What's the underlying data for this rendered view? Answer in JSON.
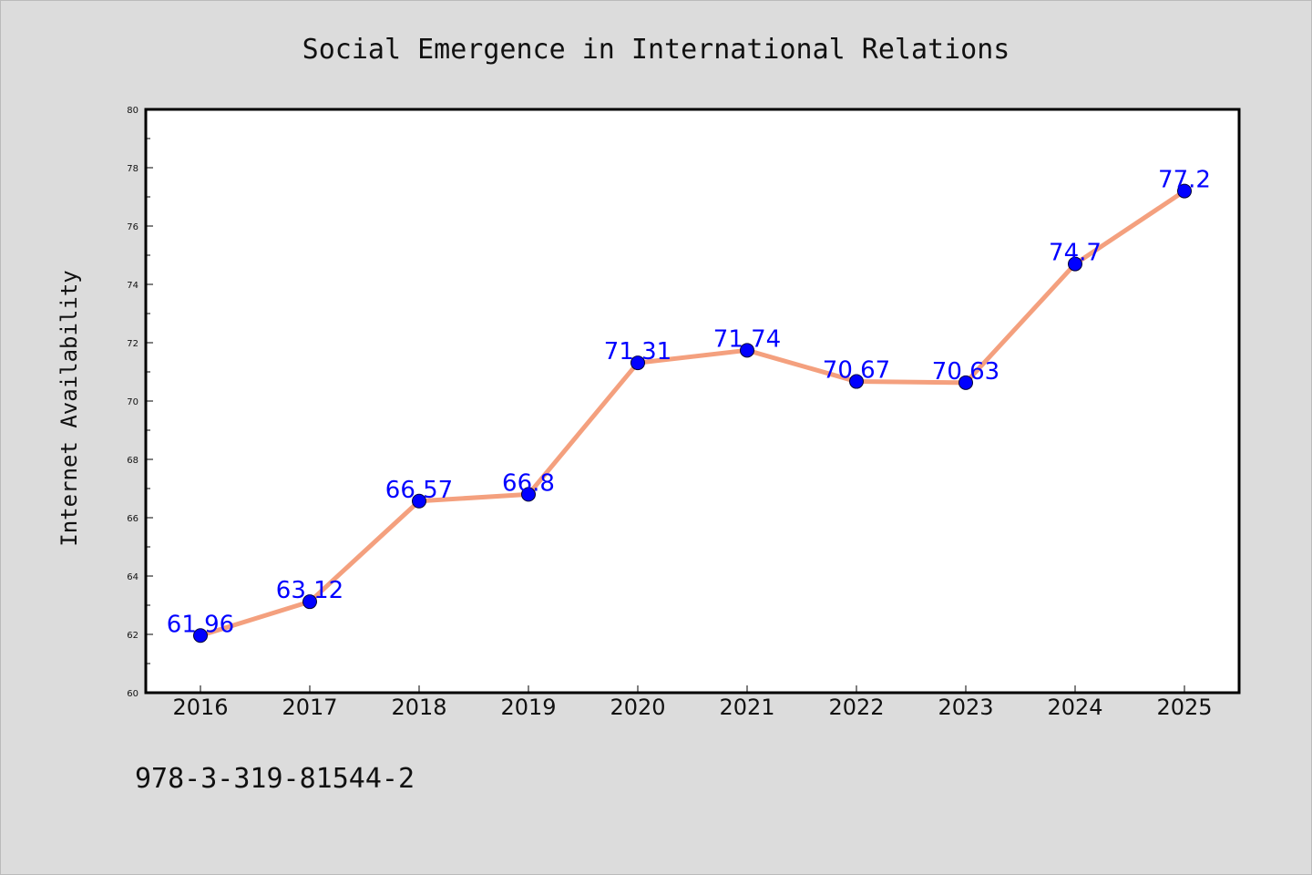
{
  "chart_data": {
    "type": "line",
    "title": "Social Emergence in International Relations",
    "xlabel": "",
    "ylabel": "Internet Availability",
    "categories": [
      "2016",
      "2017",
      "2018",
      "2019",
      "2020",
      "2021",
      "2022",
      "2023",
      "2024",
      "2025"
    ],
    "series": [
      {
        "values": [
          61.96,
          63.12,
          66.57,
          66.8,
          71.31,
          71.74,
          70.67,
          70.63,
          74.7,
          77.2
        ],
        "data_labels": [
          "61.96",
          "63.12",
          "66.57",
          "66.8",
          "71.31",
          "71.74",
          "70.67",
          "70.63",
          "74.7",
          "77.2"
        ]
      }
    ],
    "ylim": [
      60,
      80
    ],
    "yticks": [
      "60",
      "62",
      "64",
      "66",
      "68",
      "70",
      "72",
      "74",
      "76",
      "78",
      "80"
    ],
    "grid": false,
    "colors": {
      "line": "#f4a07e",
      "marker": "#0000ff",
      "data_label": "#0000ff",
      "plot_background": "#ffffff",
      "page_background": "#dcdcdc"
    }
  },
  "footnote": "978-3-319-81544-2"
}
